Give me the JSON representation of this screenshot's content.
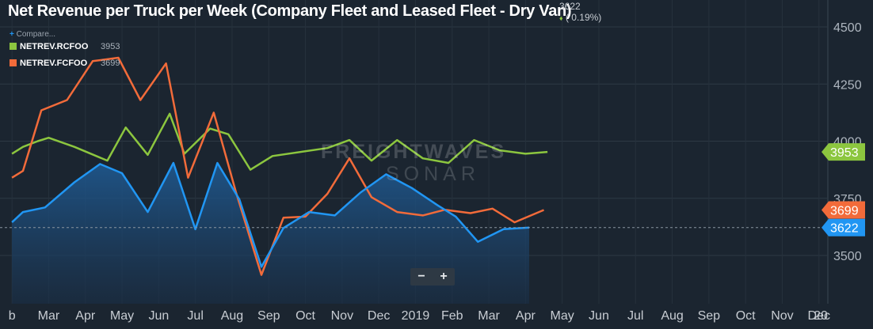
{
  "header": {
    "title": "Net Revenue per Truck per Week (Company Fleet and Leased Fleet - Dry Van)",
    "current_value": "3622",
    "change": "( 0.19%)"
  },
  "compare_label": "Compare...",
  "legend": [
    {
      "name": "NETREV.RCFOO",
      "value": "3953",
      "color": "#8cc63f"
    },
    {
      "name": "NETREV.FCFOO",
      "value": "3699",
      "color": "#f26b3a"
    }
  ],
  "watermark": {
    "line1": "FREIGHTWAVES",
    "line2": "SONAR"
  },
  "zoom": {
    "minus": "−",
    "plus": "+"
  },
  "chart_data": {
    "type": "line",
    "x_tick_labels": [
      "b",
      "Mar",
      "Apr",
      "May",
      "Jun",
      "Jul",
      "Aug",
      "Sep",
      "Oct",
      "Nov",
      "Dec",
      "2019",
      "Feb",
      "Mar",
      "Apr",
      "May",
      "Jun",
      "Jul",
      "Aug",
      "Sep",
      "Oct",
      "Nov",
      "Dec",
      "20"
    ],
    "y_ticks": [
      3500,
      3750,
      4000,
      4250,
      4500
    ],
    "ylim": [
      3390,
      4560
    ],
    "reference_line": 3622,
    "series": [
      {
        "name": "NETREV.RCFOO",
        "color": "#8cc63f",
        "end_label": "3953",
        "points": [
          [
            0,
            3945
          ],
          [
            0.3,
            3975
          ],
          [
            0.7,
            4000
          ],
          [
            1.0,
            4015
          ],
          [
            1.7,
            3975
          ],
          [
            2.6,
            3915
          ],
          [
            3.1,
            4060
          ],
          [
            3.7,
            3940
          ],
          [
            4.3,
            4120
          ],
          [
            4.7,
            3945
          ],
          [
            5.4,
            4055
          ],
          [
            5.9,
            4030
          ],
          [
            6.5,
            3875
          ],
          [
            7.1,
            3935
          ],
          [
            8.6,
            3970
          ],
          [
            9.2,
            4005
          ],
          [
            9.8,
            3915
          ],
          [
            10.5,
            4005
          ],
          [
            11.2,
            3925
          ],
          [
            11.9,
            3905
          ],
          [
            12.6,
            4005
          ],
          [
            13.3,
            3960
          ],
          [
            14.0,
            3945
          ],
          [
            14.6,
            3953
          ]
        ]
      },
      {
        "name": "NETREV.FCFOO",
        "color": "#f26b3a",
        "end_label": "3699",
        "points": [
          [
            0,
            3840
          ],
          [
            0.3,
            3870
          ],
          [
            0.8,
            4135
          ],
          [
            1.5,
            4180
          ],
          [
            2.2,
            4350
          ],
          [
            2.9,
            4365
          ],
          [
            3.5,
            4180
          ],
          [
            4.2,
            4340
          ],
          [
            4.8,
            3840
          ],
          [
            5.5,
            4125
          ],
          [
            6.1,
            3780
          ],
          [
            6.8,
            3415
          ],
          [
            7.4,
            3665
          ],
          [
            8.0,
            3670
          ],
          [
            8.6,
            3770
          ],
          [
            9.2,
            3925
          ],
          [
            9.8,
            3755
          ],
          [
            10.5,
            3690
          ],
          [
            11.2,
            3675
          ],
          [
            11.8,
            3700
          ],
          [
            12.5,
            3685
          ],
          [
            13.1,
            3705
          ],
          [
            13.7,
            3645
          ],
          [
            14.5,
            3699
          ]
        ]
      },
      {
        "name": "",
        "color": "#2196f3",
        "fill": true,
        "end_label": "3622",
        "points": [
          [
            0,
            3645
          ],
          [
            0.3,
            3690
          ],
          [
            0.9,
            3710
          ],
          [
            1.7,
            3820
          ],
          [
            2.4,
            3900
          ],
          [
            3.0,
            3860
          ],
          [
            3.7,
            3690
          ],
          [
            4.4,
            3905
          ],
          [
            5.0,
            3615
          ],
          [
            5.6,
            3905
          ],
          [
            6.2,
            3745
          ],
          [
            6.8,
            3450
          ],
          [
            7.4,
            3620
          ],
          [
            8.1,
            3690
          ],
          [
            8.8,
            3675
          ],
          [
            9.5,
            3775
          ],
          [
            10.2,
            3855
          ],
          [
            10.9,
            3795
          ],
          [
            11.6,
            3720
          ],
          [
            12.1,
            3670
          ],
          [
            12.7,
            3560
          ],
          [
            13.4,
            3615
          ],
          [
            14.1,
            3622
          ]
        ]
      }
    ]
  }
}
